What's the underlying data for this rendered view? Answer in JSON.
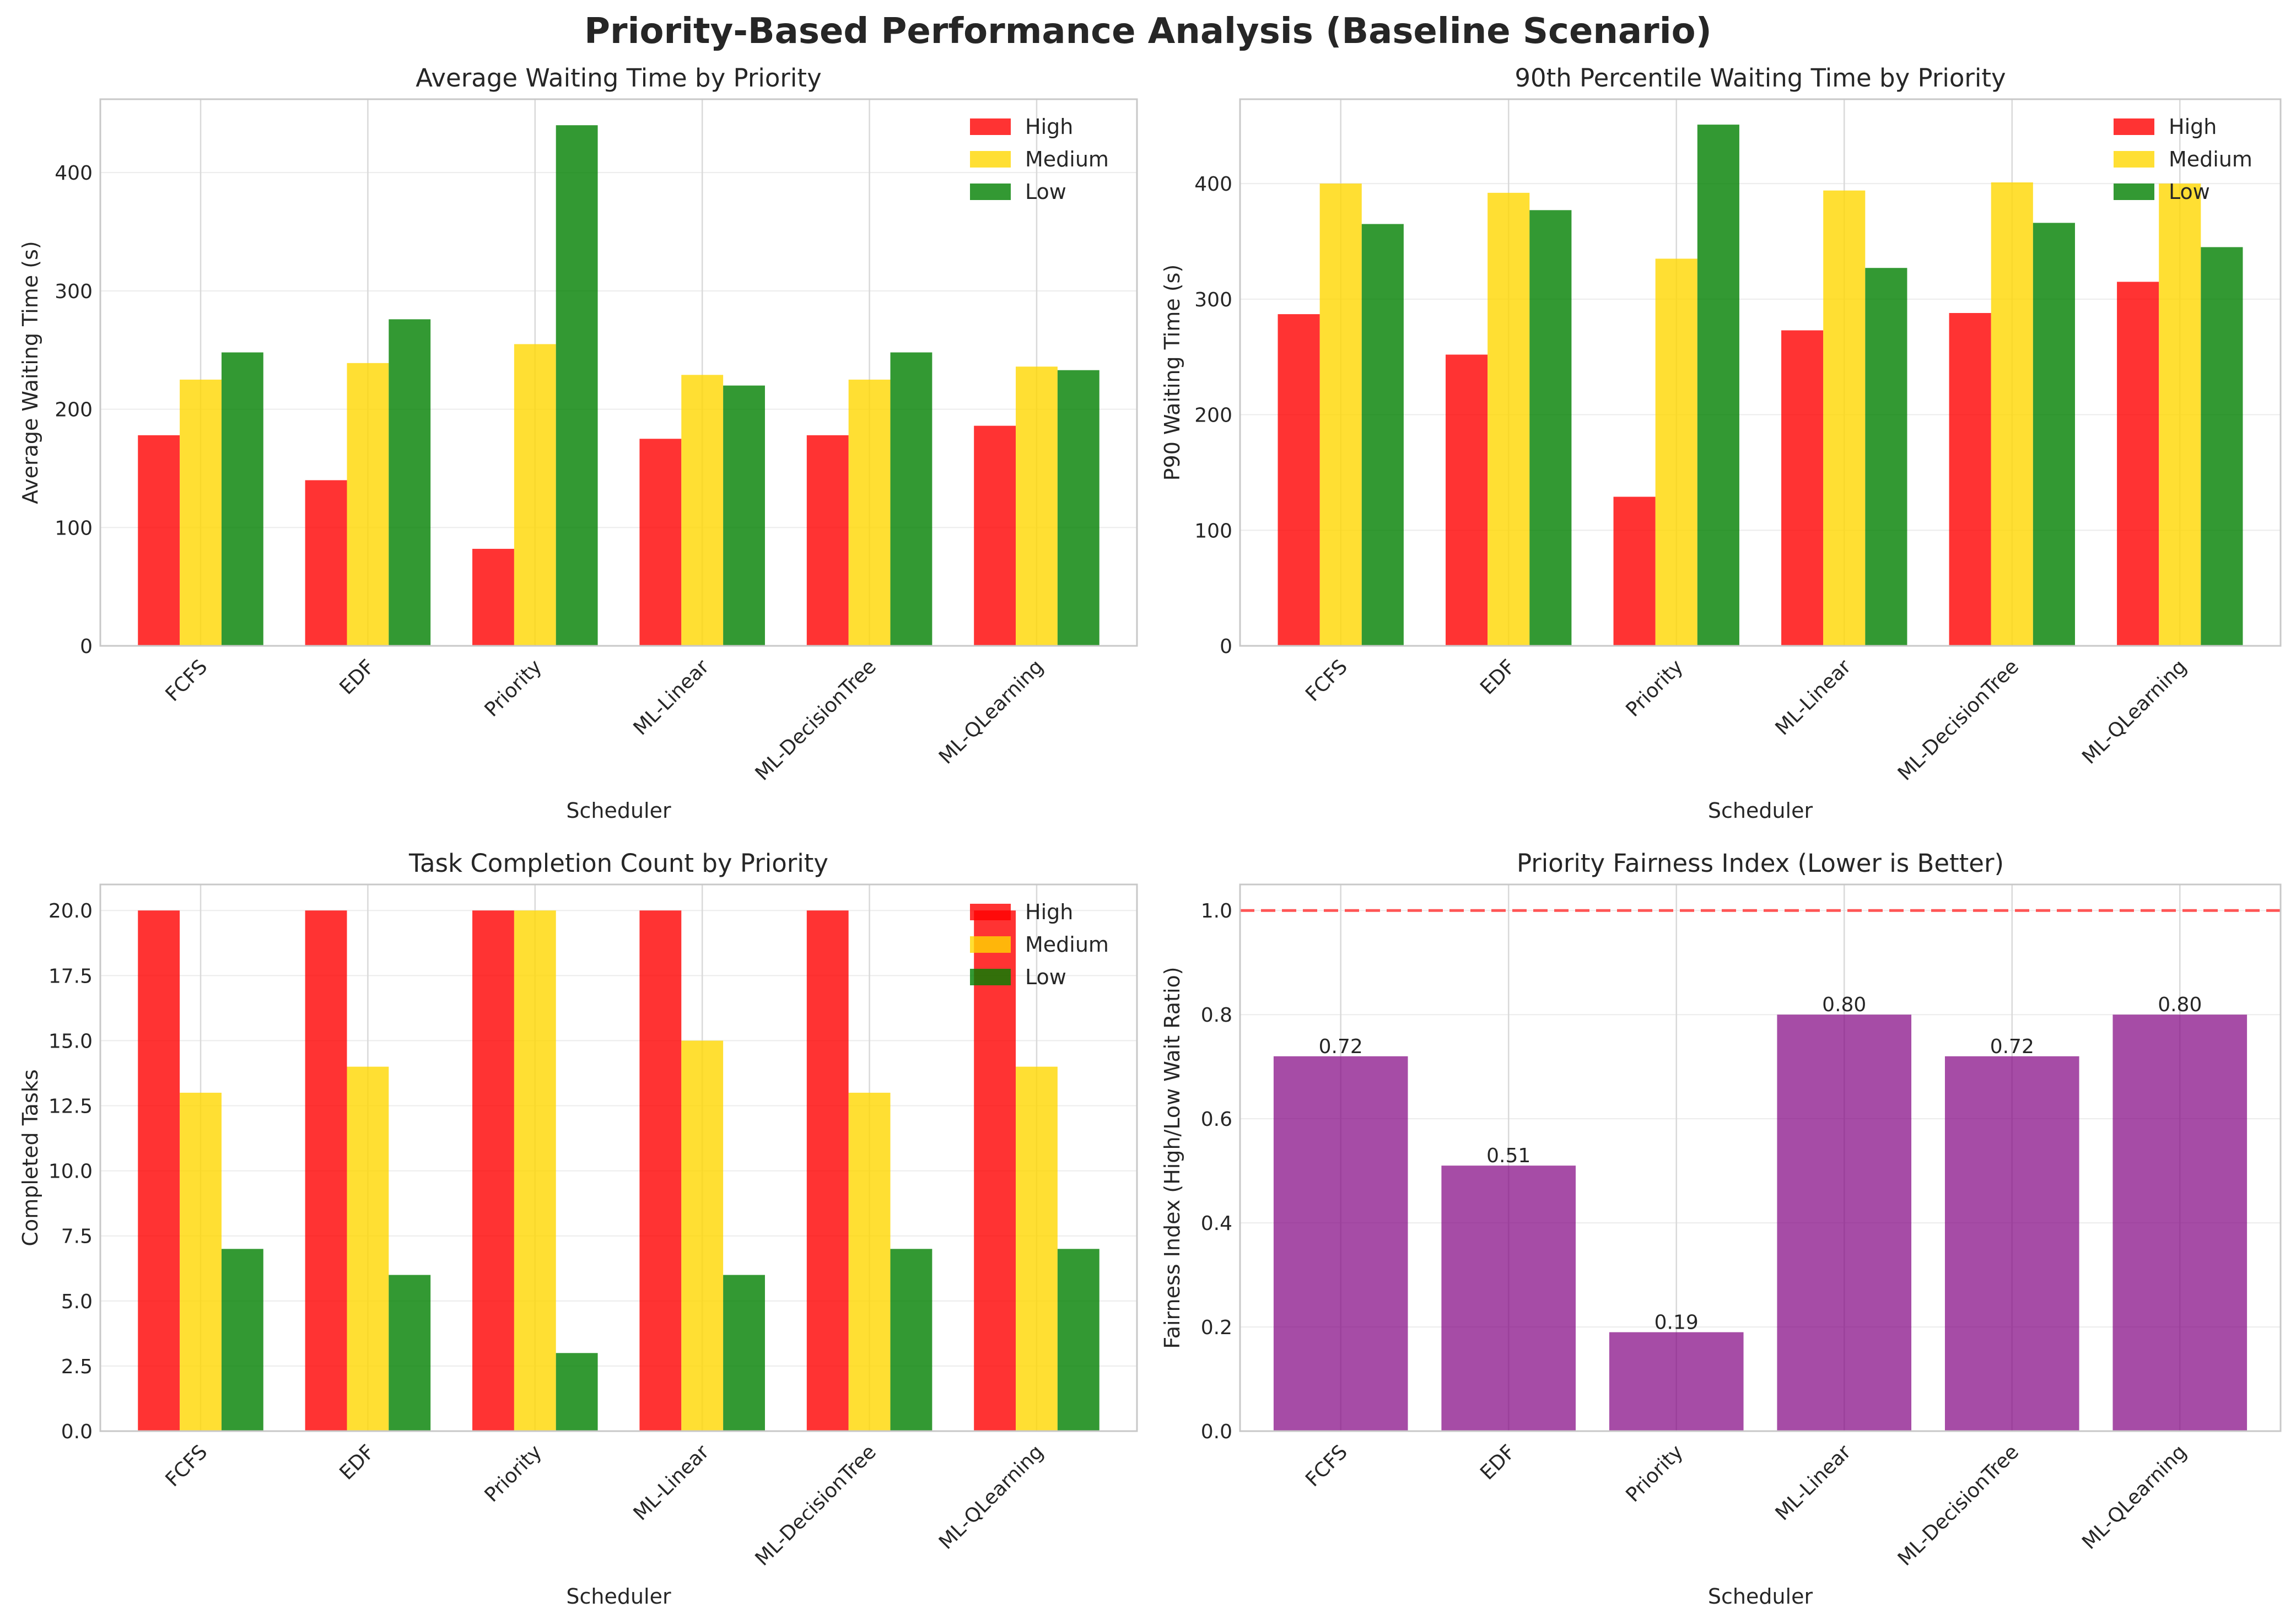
{
  "figure": {
    "suptitle": "Priority-Based Performance Analysis (Baseline Scenario)"
  },
  "colors": {
    "High": "#ff0000",
    "Medium": "#ffd700",
    "Low": "#008000",
    "fairness": "#800080",
    "reference_line": "#ff5555"
  },
  "chart_data": [
    {
      "type": "bar",
      "title": "Average Waiting Time by Priority",
      "xlabel": "Scheduler",
      "ylabel": "Average Waiting Time (s)",
      "categories": [
        "FCFS",
        "EDF",
        "Priority",
        "ML-Linear",
        "ML-DecisionTree",
        "ML-QLearning"
      ],
      "series": [
        {
          "name": "High",
          "values": [
            178,
            140,
            82,
            175,
            178,
            186
          ]
        },
        {
          "name": "Medium",
          "values": [
            225,
            239,
            255,
            229,
            225,
            236
          ]
        },
        {
          "name": "Low",
          "values": [
            248,
            276,
            440,
            220,
            248,
            233
          ]
        }
      ],
      "ylim": [
        0,
        462
      ],
      "yticks": [
        0,
        100,
        200,
        300,
        400
      ],
      "ytick_labels": [
        "0",
        "100",
        "200",
        "300",
        "400"
      ],
      "legend": "top-right",
      "grid": true
    },
    {
      "type": "bar",
      "title": "90th Percentile Waiting Time by Priority",
      "xlabel": "Scheduler",
      "ylabel": "P90 Waiting Time (s)",
      "categories": [
        "FCFS",
        "EDF",
        "Priority",
        "ML-Linear",
        "ML-DecisionTree",
        "ML-QLearning"
      ],
      "series": [
        {
          "name": "High",
          "values": [
            287,
            252,
            129,
            273,
            288,
            315
          ]
        },
        {
          "name": "Medium",
          "values": [
            400,
            392,
            335,
            394,
            401,
            400
          ]
        },
        {
          "name": "Low",
          "values": [
            365,
            377,
            451,
            327,
            366,
            345
          ]
        }
      ],
      "ylim": [
        0,
        473
      ],
      "yticks": [
        0,
        100,
        200,
        300,
        400
      ],
      "ytick_labels": [
        "0",
        "100",
        "200",
        "300",
        "400"
      ],
      "legend": "top-right",
      "grid": true
    },
    {
      "type": "bar",
      "title": "Task Completion Count by Priority",
      "xlabel": "",
      "ylabel": "Completed Tasks",
      "categories": [
        "FCFS",
        "EDF",
        "Priority",
        "ML-Linear",
        "ML-DecisionTree",
        "ML-QLearning"
      ],
      "series": [
        {
          "name": "High",
          "values": [
            20,
            20,
            20,
            20,
            20,
            20
          ]
        },
        {
          "name": "Medium",
          "values": [
            13,
            14,
            20,
            15,
            13,
            14
          ]
        },
        {
          "name": "Low",
          "values": [
            7,
            6,
            3,
            6,
            7,
            7
          ]
        }
      ],
      "ylim": [
        0,
        21
      ],
      "yticks": [
        0,
        2.5,
        5,
        7.5,
        10,
        12.5,
        15,
        17.5,
        20
      ],
      "ytick_labels": [
        "0.0",
        "2.5",
        "5.0",
        "7.5",
        "10.0",
        "12.5",
        "15.0",
        "17.5",
        "20.0"
      ],
      "legend": "top-right",
      "grid": true
    },
    {
      "type": "bar",
      "title": "Priority Fairness Index (Lower is Better)",
      "xlabel": "Scheduler",
      "ylabel": "Fairness Index (High/Low Wait Ratio)",
      "categories": [
        "FCFS",
        "EDF",
        "Priority",
        "ML-Linear",
        "ML-DecisionTree",
        "ML-QLearning"
      ],
      "values": [
        0.72,
        0.51,
        0.19,
        0.8,
        0.72,
        0.8
      ],
      "value_labels": [
        "0.72",
        "0.51",
        "0.19",
        "0.80",
        "0.72",
        "0.80"
      ],
      "reference_line": 1.0,
      "ylim": [
        0,
        1.05
      ],
      "yticks": [
        0,
        0.2,
        0.4,
        0.6,
        0.8,
        1.0
      ],
      "ytick_labels": [
        "0.0",
        "0.2",
        "0.4",
        "0.6",
        "0.8",
        "1.0"
      ],
      "grid": true
    }
  ],
  "bottom_left_xlabel": "Scheduler"
}
